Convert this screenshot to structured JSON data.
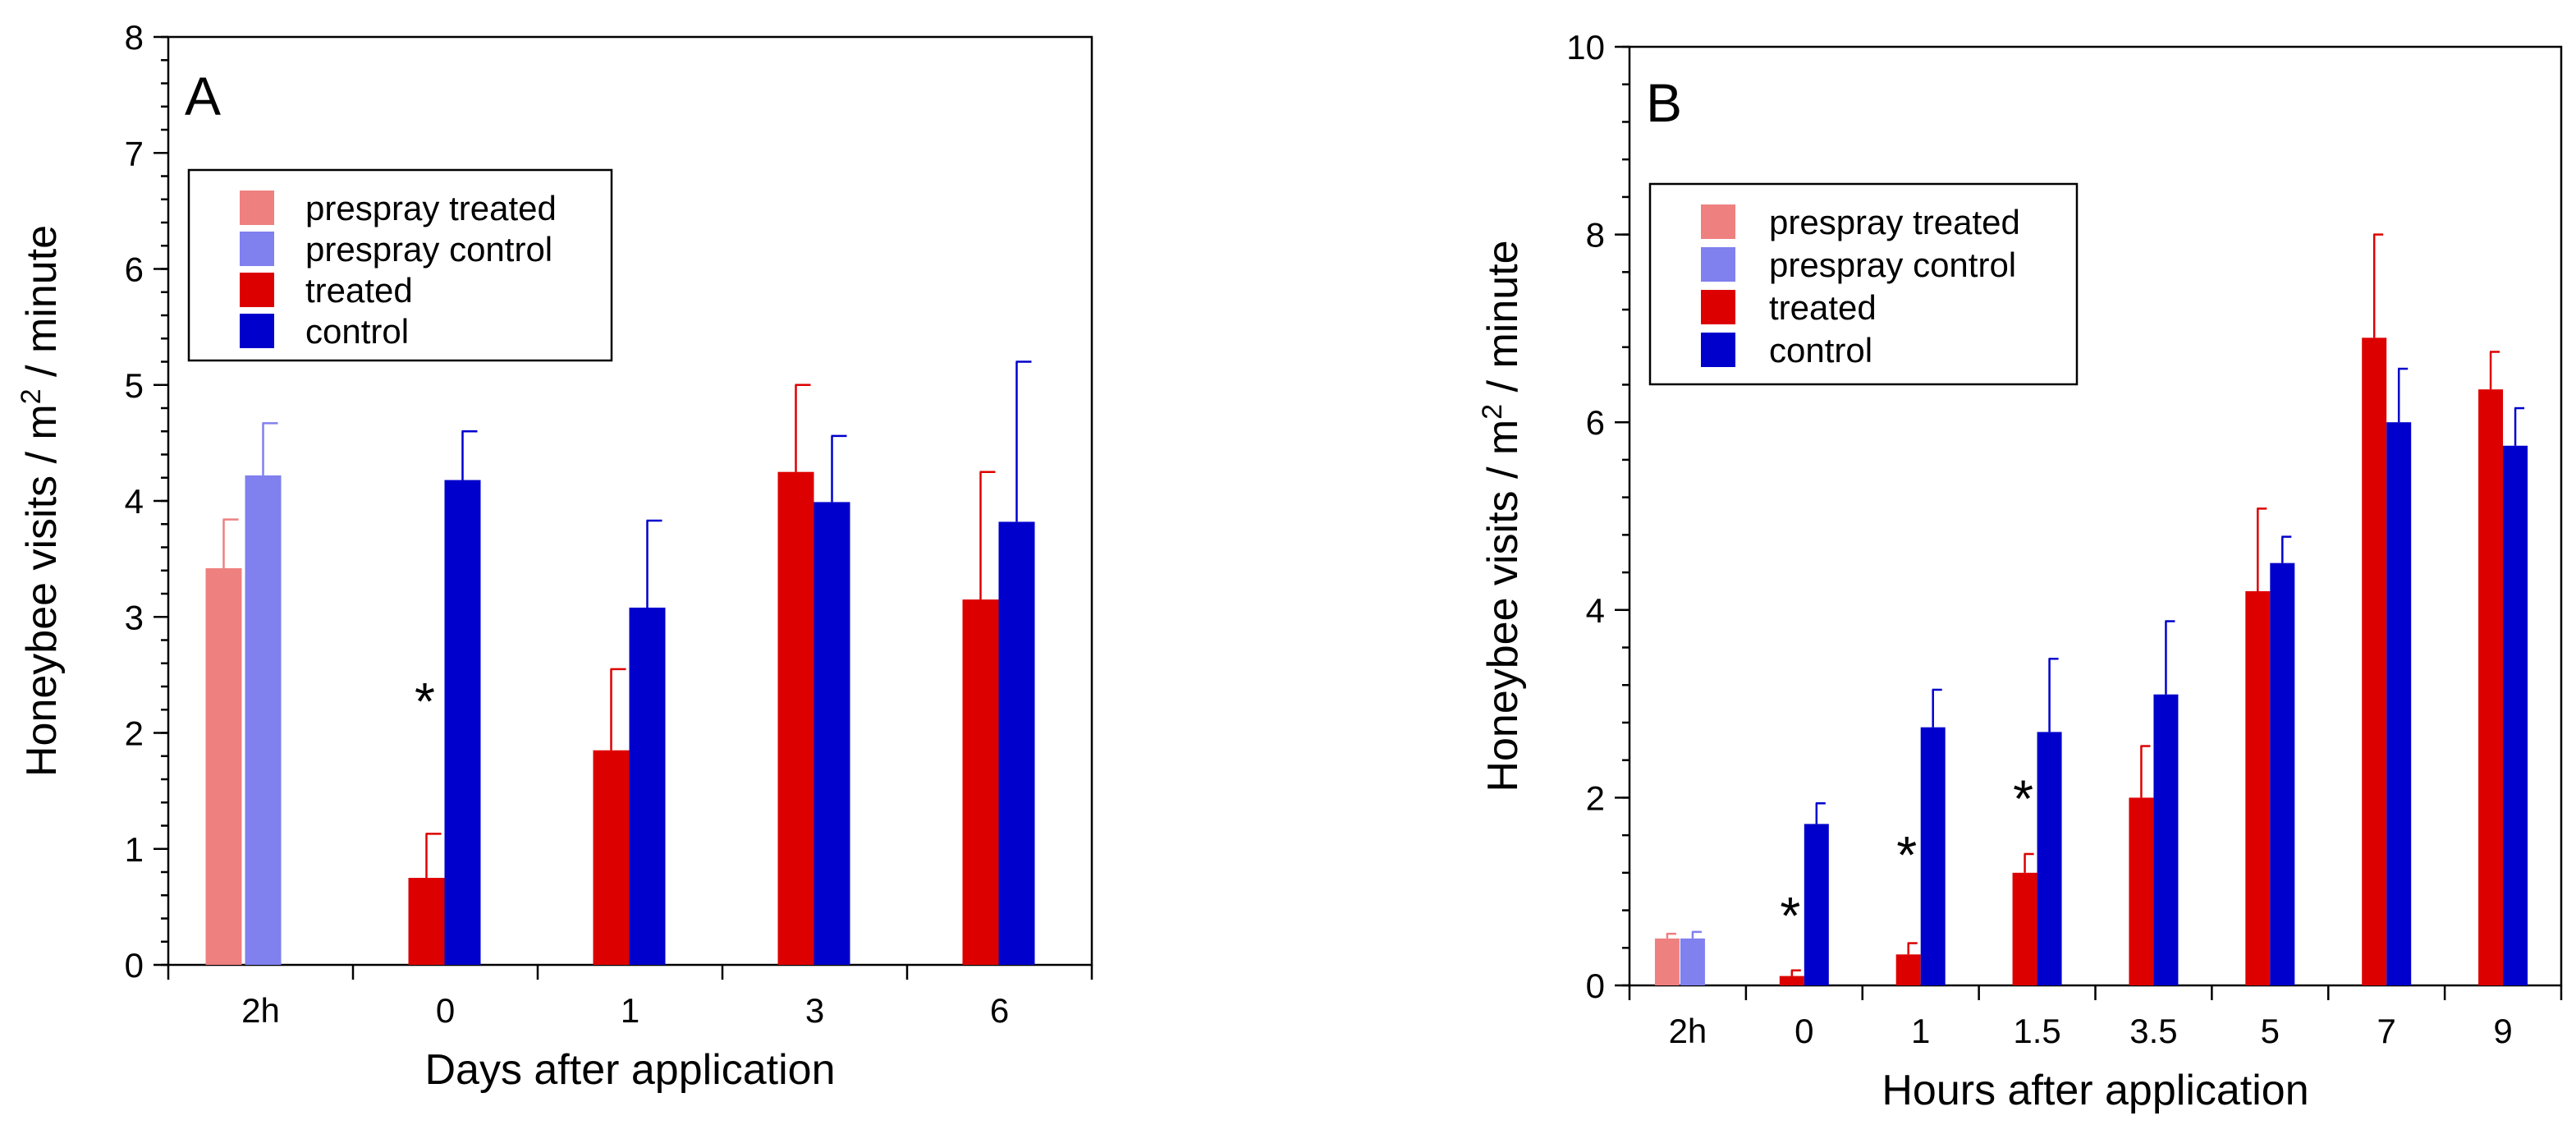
{
  "colors": {
    "prespray_treated": "#ee8080",
    "prespray_control": "#8080ee",
    "treated": "#dd0000",
    "control": "#0000cc"
  },
  "chart_data": [
    {
      "id": "A",
      "type": "bar",
      "panel_label": "A",
      "xlabel": "Days after application",
      "ylabel_prefix": "Honeybee visits / m",
      "ylabel_sup": "2",
      "ylabel_suffix": " / minute",
      "ylim": [
        0,
        8
      ],
      "yticks": [
        0,
        1,
        2,
        3,
        4,
        5,
        6,
        7,
        8
      ],
      "grid": false,
      "legend_position": "upper-left",
      "legend": [
        {
          "key": "prespray_treated",
          "label": "prespray treated"
        },
        {
          "key": "prespray_control",
          "label": "prespray control"
        },
        {
          "key": "treated",
          "label": "treated"
        },
        {
          "key": "control",
          "label": "control"
        }
      ],
      "categories": [
        "2h",
        "0",
        "1",
        "3",
        "6"
      ],
      "series": [
        {
          "name": "prespray treated",
          "key": "prespray_treated",
          "values": [
            3.42,
            null,
            null,
            null,
            null
          ],
          "errors": [
            0.42,
            null,
            null,
            null,
            null
          ]
        },
        {
          "name": "prespray control",
          "key": "prespray_control",
          "values": [
            4.22,
            null,
            null,
            null,
            null
          ],
          "errors": [
            0.45,
            null,
            null,
            null,
            null
          ]
        },
        {
          "name": "treated",
          "key": "treated",
          "values": [
            null,
            0.75,
            1.85,
            4.25,
            3.15
          ],
          "errors": [
            null,
            0.38,
            0.7,
            0.75,
            1.1
          ]
        },
        {
          "name": "control",
          "key": "control",
          "values": [
            null,
            4.18,
            3.08,
            3.99,
            3.82
          ],
          "errors": [
            null,
            0.42,
            0.75,
            0.57,
            1.38
          ]
        }
      ],
      "annotations": [
        {
          "text": "*",
          "category": "0",
          "value": 2.4
        }
      ]
    },
    {
      "id": "B",
      "type": "bar",
      "panel_label": "B",
      "xlabel": "Hours after application",
      "ylabel_prefix": "Honeybee visits / m",
      "ylabel_sup": "2",
      "ylabel_suffix": " / minute",
      "ylim": [
        0,
        10
      ],
      "yticks": [
        0,
        2,
        4,
        6,
        8,
        10
      ],
      "grid": false,
      "legend_position": "upper-left",
      "legend": [
        {
          "key": "prespray_treated",
          "label": "prespray treated"
        },
        {
          "key": "prespray_control",
          "label": "prespray control"
        },
        {
          "key": "treated",
          "label": "treated"
        },
        {
          "key": "control",
          "label": "control"
        }
      ],
      "categories": [
        "2h",
        "0",
        "1",
        "1.5",
        "3.5",
        "5",
        "7",
        "9"
      ],
      "series": [
        {
          "name": "prespray treated",
          "key": "prespray_treated",
          "values": [
            0.5,
            null,
            null,
            null,
            null,
            null,
            null,
            null
          ],
          "errors": [
            0.05,
            null,
            null,
            null,
            null,
            null,
            null,
            null
          ]
        },
        {
          "name": "prespray control",
          "key": "prespray_control",
          "values": [
            0.5,
            null,
            null,
            null,
            null,
            null,
            null,
            null
          ],
          "errors": [
            0.07,
            null,
            null,
            null,
            null,
            null,
            null,
            null
          ]
        },
        {
          "name": "treated",
          "key": "treated",
          "values": [
            null,
            0.1,
            0.33,
            1.2,
            2.0,
            4.2,
            6.9,
            6.35
          ],
          "errors": [
            null,
            0.06,
            0.12,
            0.2,
            0.55,
            0.88,
            1.1,
            0.4
          ]
        },
        {
          "name": "control",
          "key": "control",
          "values": [
            null,
            1.72,
            2.75,
            2.7,
            3.1,
            4.5,
            6.0,
            5.75
          ],
          "errors": [
            null,
            0.22,
            0.4,
            0.78,
            0.78,
            0.28,
            0.57,
            0.4
          ]
        }
      ],
      "annotations": [
        {
          "text": "*",
          "category": "0",
          "value": 0.9
        },
        {
          "text": "*",
          "category": "1",
          "value": 1.55
        },
        {
          "text": "*",
          "category": "1.5",
          "value": 2.15
        }
      ]
    }
  ]
}
